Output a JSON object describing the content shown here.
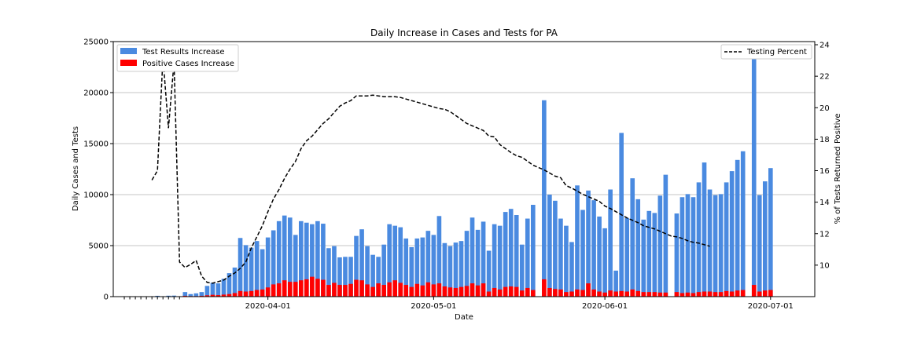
{
  "chart_data": {
    "type": "bar",
    "title": "Daily Increase in Cases and Tests for PA",
    "xlabel": "Date",
    "ylabel": "Daily Cases and Tests",
    "ylabel_right": "% of Tests Returned Positive",
    "ylim": [
      0,
      25000
    ],
    "ylim_right": [
      8,
      24.2
    ],
    "y_ticks": [
      "0",
      "5000",
      "10000",
      "15000",
      "20000",
      "25000"
    ],
    "y_ticks_right": [
      "10",
      "12",
      "14",
      "16",
      "18",
      "20",
      "22",
      "24"
    ],
    "x_ticks": [
      "2020-04-01",
      "2020-05-01",
      "2020-06-01",
      "2020-07-01"
    ],
    "grid": "horizontal",
    "legend_left": [
      "Test Results Increase",
      "Positive Cases Increase"
    ],
    "legend_right": [
      "Testing Percent"
    ],
    "colors": {
      "tests": "#4a8ae0",
      "positives": "#ff0000",
      "line": "#000000"
    },
    "series": [
      {
        "name": "Test Results Increase",
        "values": [
          0,
          0,
          0,
          0,
          0,
          0,
          0,
          0,
          0,
          0,
          0,
          0,
          0,
          0,
          0,
          0,
          0,
          0,
          0,
          0,
          0,
          0,
          0,
          0,
          0,
          0,
          0,
          0,
          0,
          0,
          0,
          0,
          0,
          0,
          0,
          0,
          0,
          0,
          0,
          0,
          0,
          0,
          0,
          0,
          0,
          0,
          0,
          0,
          0,
          0,
          0,
          0,
          0,
          0,
          0,
          0,
          0,
          0,
          0,
          0,
          0,
          0,
          0,
          0,
          0,
          0,
          0,
          0,
          0,
          0,
          0,
          0,
          0,
          0,
          0,
          0,
          0,
          0,
          0,
          0,
          0,
          0,
          0,
          0,
          0,
          0,
          0,
          0,
          0,
          0,
          0,
          0,
          0,
          0,
          0,
          0,
          0,
          0,
          0,
          0,
          0,
          0,
          0,
          0,
          0,
          0,
          0,
          0,
          0,
          0,
          0,
          0,
          0,
          0,
          0,
          0,
          0,
          0,
          0,
          0,
          0,
          0,
          0,
          0,
          0,
          0,
          0,
          0,
          0,
          0,
          0,
          0,
          0,
          0,
          0,
          0,
          0,
          0,
          0,
          0,
          0,
          0,
          0,
          0,
          0,
          0,
          0,
          0,
          0,
          0,
          0,
          0,
          0,
          0,
          0,
          0,
          0,
          0,
          0,
          0,
          0,
          0,
          0,
          0,
          0,
          0,
          0,
          0
        ]
      },
      {
        "name": "Positive Cases Increase",
        "values": [
          0,
          0,
          0,
          0,
          0,
          0,
          0,
          0,
          0,
          0,
          0,
          0,
          0,
          0,
          0,
          0,
          0,
          0,
          0,
          0,
          0,
          0,
          0,
          0,
          0,
          0,
          0,
          0,
          0,
          0,
          0,
          0,
          0,
          0,
          0,
          0,
          0,
          0,
          0,
          0,
          0,
          0,
          0,
          0,
          0,
          0,
          0,
          0,
          0,
          0,
          0,
          0,
          0,
          0,
          0,
          0,
          0,
          0,
          0,
          0,
          0,
          0,
          0,
          0,
          0,
          0,
          0,
          0,
          0,
          0,
          0,
          0,
          0,
          0,
          0,
          0,
          0,
          0,
          0,
          0,
          0,
          0,
          0,
          0,
          0,
          0,
          0,
          0,
          0,
          0,
          0,
          0,
          0,
          0,
          0,
          0,
          0,
          0,
          0,
          0,
          0,
          0,
          0,
          0,
          0,
          0,
          0,
          0,
          0,
          0,
          0,
          0,
          0,
          0,
          0,
          0,
          0,
          0,
          0,
          0,
          0,
          0,
          0,
          0,
          0,
          0,
          0,
          0,
          0,
          0,
          0,
          0,
          0,
          0,
          0,
          0,
          0,
          0,
          0,
          0,
          0,
          0,
          0,
          0,
          0,
          0,
          0,
          0,
          0,
          0,
          0,
          0,
          0,
          0,
          0,
          0,
          0,
          0,
          0,
          0,
          0,
          0,
          0,
          0,
          0,
          0,
          0,
          0
        ]
      }
    ],
    "bars": [
      [
        "2020-03-06",
        0,
        0
      ],
      [
        "2020-03-07",
        0,
        0
      ],
      [
        "2020-03-08",
        0,
        0
      ],
      [
        "2020-03-09",
        0,
        0
      ],
      [
        "2020-03-10",
        0,
        0
      ],
      [
        "2020-03-11",
        0,
        0
      ],
      [
        "2020-03-12",
        80,
        10
      ],
      [
        "2020-03-13",
        30,
        5
      ],
      [
        "2020-03-14",
        90,
        15
      ],
      [
        "2020-03-15",
        100,
        20
      ],
      [
        "2020-03-16",
        40,
        5
      ],
      [
        "2020-03-17",
        450,
        80
      ],
      [
        "2020-03-18",
        250,
        50
      ],
      [
        "2020-03-19",
        320,
        50
      ],
      [
        "2020-03-20",
        450,
        80
      ],
      [
        "2020-03-21",
        1050,
        130
      ],
      [
        "2020-03-22",
        1350,
        180
      ],
      [
        "2020-03-23",
        1300,
        150
      ],
      [
        "2020-03-24",
        1750,
        200
      ],
      [
        "2020-03-25",
        2300,
        250
      ],
      [
        "2020-03-26",
        2850,
        350
      ],
      [
        "2020-03-27",
        5750,
        550
      ],
      [
        "2020-03-28",
        5050,
        500
      ],
      [
        "2020-03-29",
        4800,
        550
      ],
      [
        "2020-03-30",
        5450,
        650
      ],
      [
        "2020-03-31",
        4650,
        700
      ],
      [
        "2020-04-01",
        5800,
        900
      ],
      [
        "2020-04-02",
        6500,
        1200
      ],
      [
        "2020-04-03",
        7400,
        1300
      ],
      [
        "2020-04-04",
        7950,
        1600
      ],
      [
        "2020-04-05",
        7750,
        1450
      ],
      [
        "2020-04-06",
        6050,
        1450
      ],
      [
        "2020-04-07",
        7400,
        1600
      ],
      [
        "2020-04-08",
        7250,
        1700
      ],
      [
        "2020-04-09",
        7100,
        1950
      ],
      [
        "2020-04-10",
        7400,
        1750
      ],
      [
        "2020-04-11",
        7150,
        1650
      ],
      [
        "2020-04-12",
        4750,
        1150
      ],
      [
        "2020-04-13",
        4950,
        1350
      ],
      [
        "2020-04-14",
        3850,
        1150
      ],
      [
        "2020-04-15",
        3900,
        1150
      ],
      [
        "2020-04-16",
        3900,
        1250
      ],
      [
        "2020-04-17",
        5950,
        1650
      ],
      [
        "2020-04-18",
        6600,
        1600
      ],
      [
        "2020-04-19",
        4950,
        1200
      ],
      [
        "2020-04-20",
        4100,
        950
      ],
      [
        "2020-04-21",
        3900,
        1300
      ],
      [
        "2020-04-22",
        5100,
        1150
      ],
      [
        "2020-04-23",
        7100,
        1400
      ],
      [
        "2020-04-24",
        6950,
        1600
      ],
      [
        "2020-04-25",
        6800,
        1350
      ],
      [
        "2020-04-26",
        5700,
        1150
      ],
      [
        "2020-04-27",
        4850,
        950
      ],
      [
        "2020-04-28",
        5700,
        1250
      ],
      [
        "2020-04-29",
        5800,
        1100
      ],
      [
        "2020-04-30",
        6450,
        1400
      ],
      [
        "2020-05-01",
        6050,
        1200
      ],
      [
        "2020-05-02",
        7900,
        1300
      ],
      [
        "2020-05-03",
        5250,
        1000
      ],
      [
        "2020-05-04",
        4950,
        900
      ],
      [
        "2020-05-05",
        5300,
        850
      ],
      [
        "2020-05-06",
        5450,
        950
      ],
      [
        "2020-05-07",
        6450,
        1050
      ],
      [
        "2020-05-08",
        7750,
        1300
      ],
      [
        "2020-05-09",
        6550,
        1100
      ],
      [
        "2020-05-10",
        7350,
        1300
      ],
      [
        "2020-05-11",
        4500,
        500
      ],
      [
        "2020-05-12",
        7100,
        850
      ],
      [
        "2020-05-13",
        6950,
        700
      ],
      [
        "2020-05-14",
        8300,
        950
      ],
      [
        "2020-05-15",
        8600,
        1000
      ],
      [
        "2020-05-16",
        8000,
        950
      ],
      [
        "2020-05-17",
        5100,
        600
      ],
      [
        "2020-05-18",
        7650,
        850
      ],
      [
        "2020-05-19",
        9000,
        650
      ],
      [
        "2020-05-20",
        0,
        0
      ],
      [
        "2020-05-21",
        19250,
        1700
      ],
      [
        "2020-05-22",
        10000,
        850
      ],
      [
        "2020-05-23",
        9400,
        750
      ],
      [
        "2020-05-24",
        7650,
        700
      ],
      [
        "2020-05-25",
        6950,
        450
      ],
      [
        "2020-05-26",
        5350,
        500
      ],
      [
        "2020-05-27",
        10900,
        700
      ],
      [
        "2020-05-28",
        8500,
        650
      ],
      [
        "2020-05-29",
        10400,
        1300
      ],
      [
        "2020-05-30",
        9450,
        700
      ],
      [
        "2020-05-31",
        7850,
        500
      ],
      [
        "2020-06-01",
        6700,
        400
      ],
      [
        "2020-06-02",
        10500,
        600
      ],
      [
        "2020-06-03",
        2550,
        500
      ],
      [
        "2020-06-04",
        16050,
        550
      ],
      [
        "2020-06-05",
        7700,
        500
      ],
      [
        "2020-06-06",
        11600,
        700
      ],
      [
        "2020-06-07",
        9550,
        550
      ],
      [
        "2020-06-08",
        7550,
        450
      ],
      [
        "2020-06-09",
        8400,
        450
      ],
      [
        "2020-06-10",
        8200,
        450
      ],
      [
        "2020-06-11",
        9900,
        400
      ],
      [
        "2020-06-12",
        11950,
        400
      ],
      [
        "2020-06-13",
        0,
        0
      ],
      [
        "2020-06-14",
        8150,
        450
      ],
      [
        "2020-06-15",
        9750,
        350
      ],
      [
        "2020-06-16",
        10050,
        400
      ],
      [
        "2020-06-17",
        9750,
        350
      ],
      [
        "2020-06-18",
        11200,
        450
      ],
      [
        "2020-06-19",
        13150,
        500
      ],
      [
        "2020-06-20",
        10500,
        500
      ],
      [
        "2020-06-21",
        9950,
        450
      ],
      [
        "2020-06-22",
        10050,
        450
      ],
      [
        "2020-06-23",
        11200,
        550
      ],
      [
        "2020-06-24",
        12300,
        500
      ],
      [
        "2020-06-25",
        13400,
        600
      ],
      [
        "2020-06-26",
        14250,
        650
      ],
      [
        "2020-06-27",
        0,
        0
      ],
      [
        "2020-06-28",
        23800,
        1150
      ],
      [
        "2020-06-29",
        9950,
        500
      ],
      [
        "2020-06-30",
        11300,
        600
      ],
      [
        "2020-07-01",
        12600,
        650
      ]
    ],
    "line": [
      [
        "2020-03-11",
        15.4
      ],
      [
        "2020-03-12",
        16.0
      ],
      [
        "2020-03-13",
        23.2
      ],
      [
        "2020-03-14",
        18.7
      ],
      [
        "2020-03-15",
        22.9
      ],
      [
        "2020-03-16",
        10.2
      ],
      [
        "2020-03-17",
        9.85
      ],
      [
        "2020-03-18",
        10.05
      ],
      [
        "2020-03-19",
        10.3
      ],
      [
        "2020-03-20",
        9.3
      ],
      [
        "2020-03-21",
        8.9
      ],
      [
        "2020-03-22",
        8.85
      ],
      [
        "2020-03-23",
        8.95
      ],
      [
        "2020-03-24",
        9.05
      ],
      [
        "2020-03-25",
        9.3
      ],
      [
        "2020-03-26",
        9.5
      ],
      [
        "2020-03-27",
        9.8
      ],
      [
        "2020-03-28",
        10.2
      ],
      [
        "2020-03-29",
        11.1
      ],
      [
        "2020-03-30",
        11.8
      ],
      [
        "2020-03-31",
        12.5
      ],
      [
        "2020-04-01",
        13.4
      ],
      [
        "2020-04-02",
        14.2
      ],
      [
        "2020-04-03",
        14.8
      ],
      [
        "2020-04-04",
        15.5
      ],
      [
        "2020-04-05",
        16.1
      ],
      [
        "2020-04-06",
        16.6
      ],
      [
        "2020-04-07",
        17.4
      ],
      [
        "2020-04-08",
        17.9
      ],
      [
        "2020-04-09",
        18.2
      ],
      [
        "2020-04-10",
        18.6
      ],
      [
        "2020-04-11",
        19.0
      ],
      [
        "2020-04-12",
        19.3
      ],
      [
        "2020-04-13",
        19.7
      ],
      [
        "2020-04-14",
        20.1
      ],
      [
        "2020-04-15",
        20.3
      ],
      [
        "2020-04-16",
        20.45
      ],
      [
        "2020-04-17",
        20.75
      ],
      [
        "2020-04-18",
        20.75
      ],
      [
        "2020-04-19",
        20.75
      ],
      [
        "2020-04-20",
        20.8
      ],
      [
        "2020-04-21",
        20.75
      ],
      [
        "2020-04-22",
        20.7
      ],
      [
        "2020-04-23",
        20.7
      ],
      [
        "2020-04-24",
        20.7
      ],
      [
        "2020-04-25",
        20.65
      ],
      [
        "2020-04-26",
        20.55
      ],
      [
        "2020-04-27",
        20.45
      ],
      [
        "2020-04-28",
        20.35
      ],
      [
        "2020-04-29",
        20.25
      ],
      [
        "2020-04-30",
        20.15
      ],
      [
        "2020-05-01",
        20.05
      ],
      [
        "2020-05-02",
        19.95
      ],
      [
        "2020-05-03",
        19.9
      ],
      [
        "2020-05-04",
        19.75
      ],
      [
        "2020-05-05",
        19.5
      ],
      [
        "2020-05-06",
        19.25
      ],
      [
        "2020-05-07",
        19.0
      ],
      [
        "2020-05-08",
        18.85
      ],
      [
        "2020-05-09",
        18.7
      ],
      [
        "2020-05-10",
        18.55
      ],
      [
        "2020-05-11",
        18.2
      ],
      [
        "2020-05-12",
        18.15
      ],
      [
        "2020-05-13",
        17.65
      ],
      [
        "2020-05-14",
        17.4
      ],
      [
        "2020-05-15",
        17.15
      ],
      [
        "2020-05-16",
        16.95
      ],
      [
        "2020-05-17",
        16.85
      ],
      [
        "2020-05-18",
        16.6
      ],
      [
        "2020-05-19",
        16.35
      ],
      [
        "2020-05-20",
        16.2
      ],
      [
        "2020-05-21",
        16.05
      ],
      [
        "2020-05-22",
        15.85
      ],
      [
        "2020-05-23",
        15.65
      ],
      [
        "2020-05-24",
        15.55
      ],
      [
        "2020-05-25",
        15.05
      ],
      [
        "2020-05-26",
        14.9
      ],
      [
        "2020-05-27",
        14.7
      ],
      [
        "2020-05-28",
        14.5
      ],
      [
        "2020-05-29",
        14.35
      ],
      [
        "2020-05-30",
        14.2
      ],
      [
        "2020-05-31",
        14.05
      ],
      [
        "2020-06-01",
        13.75
      ],
      [
        "2020-06-02",
        13.6
      ],
      [
        "2020-06-03",
        13.4
      ],
      [
        "2020-06-04",
        13.2
      ],
      [
        "2020-06-05",
        13.0
      ],
      [
        "2020-06-06",
        12.85
      ],
      [
        "2020-06-07",
        12.7
      ],
      [
        "2020-06-08",
        12.5
      ],
      [
        "2020-06-09",
        12.4
      ],
      [
        "2020-06-10",
        12.3
      ],
      [
        "2020-06-11",
        12.15
      ],
      [
        "2020-06-12",
        12.0
      ],
      [
        "2020-06-13",
        11.85
      ],
      [
        "2020-06-14",
        11.8
      ],
      [
        "2020-06-15",
        11.7
      ],
      [
        "2020-06-16",
        11.55
      ],
      [
        "2020-06-17",
        11.45
      ],
      [
        "2020-06-18",
        11.4
      ],
      [
        "2020-06-19",
        11.3
      ],
      [
        "2020-06-20",
        11.2
      ]
    ]
  }
}
